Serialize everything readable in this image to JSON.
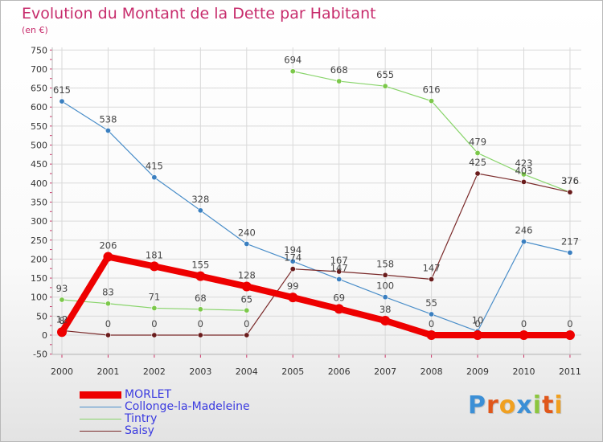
{
  "title": "Evolution du Montant de la Dette par Habitant",
  "subtitle": "(en €)",
  "logo": {
    "text": "Proxiti",
    "colors": [
      "#3b8fd6",
      "#e0571b",
      "#f0a020",
      "#3b8fd6",
      "#8cc63f",
      "#e0571b",
      "#f0a020"
    ]
  },
  "colors": {
    "title": "#c72c6c",
    "axis_text": "#333333",
    "grid": "#d9d9d9",
    "legend_text": "#3a3ae0"
  },
  "chart_data": {
    "type": "line",
    "x": [
      "2000",
      "2001",
      "2002",
      "2003",
      "2004",
      "2005",
      "2006",
      "2007",
      "2008",
      "2009",
      "2010",
      "2011"
    ],
    "ylim": [
      -50,
      750
    ],
    "yticks": [
      -50,
      0,
      50,
      100,
      150,
      200,
      250,
      300,
      350,
      400,
      450,
      500,
      550,
      600,
      650,
      700,
      750
    ],
    "grid": true,
    "legend_position": "bottom-left",
    "series": [
      {
        "name": "Collonge-la-Madeleine",
        "color": "#4a8ec9",
        "dot": "#3a7fc0",
        "values": [
          615,
          538,
          415,
          328,
          240,
          194,
          147,
          100,
          55,
          10,
          246,
          217
        ],
        "labels": [
          "615",
          "538",
          "415",
          "328",
          "240",
          "194",
          "147",
          "100",
          "55",
          "10",
          "246",
          "217"
        ]
      },
      {
        "name": "Tintry",
        "color": "#88d46a",
        "dot": "#7cc84a",
        "values": [
          93,
          83,
          71,
          68,
          65,
          694,
          668,
          655,
          616,
          479,
          423,
          376
        ],
        "labels": [
          "93",
          "83",
          "71",
          "68",
          "65",
          "694",
          "668",
          "655",
          "616",
          "479",
          "423",
          "376"
        ],
        "break_after": 4
      },
      {
        "name": "Saisy",
        "color": "#7a2a2a",
        "dot": "#6a1c1c",
        "values": [
          12,
          0,
          0,
          0,
          0,
          174,
          167,
          158,
          147,
          425,
          403,
          376
        ],
        "labels": [
          "12",
          "0",
          "0",
          "0",
          "0",
          "174",
          "167",
          "158",
          "147",
          "425",
          "403",
          "376"
        ]
      },
      {
        "name": "MORLET",
        "color": "#ee0000",
        "dot": "#ee0000",
        "thick": true,
        "values": [
          8,
          206,
          181,
          155,
          128,
          99,
          69,
          38,
          0,
          0,
          0,
          0
        ],
        "labels": [
          "8",
          "206",
          "181",
          "155",
          "128",
          "99",
          "69",
          "38",
          "0",
          "0",
          "0",
          "0"
        ]
      }
    ],
    "legend": [
      "MORLET",
      "Collonge-la-Madeleine",
      "Tintry",
      "Saisy"
    ]
  }
}
